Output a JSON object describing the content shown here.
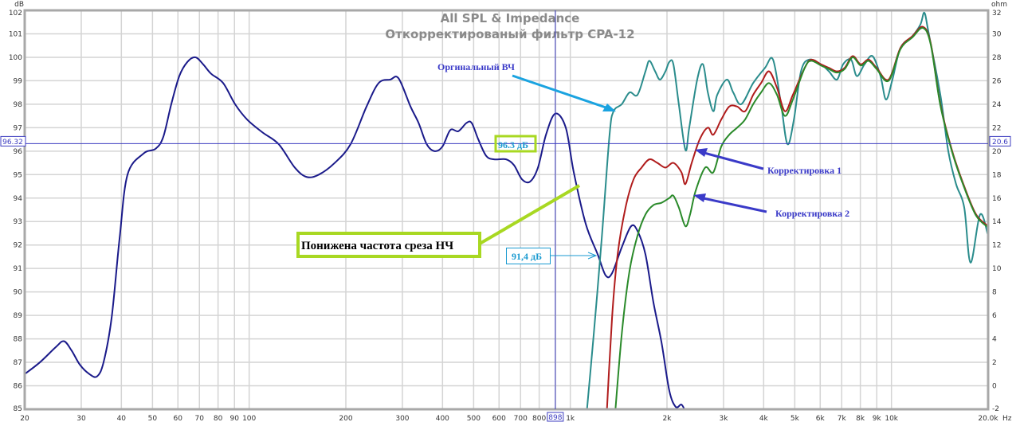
{
  "chart_data": {
    "type": "line",
    "title": "All SPL & Impedance",
    "subtitle": "Откорректированый фильтр CPA-12",
    "xlabel_unit": "Hz",
    "ylabel": "dB",
    "ylabel_right": "ohm",
    "xscale": "log",
    "xlim": [
      20,
      20000
    ],
    "ylim": [
      85,
      102
    ],
    "ylim_right": [
      -2,
      32
    ],
    "grid": true,
    "y_ticks": [
      85,
      86,
      87,
      88,
      89,
      90,
      91,
      92,
      93,
      94,
      95,
      96,
      97,
      98,
      99,
      100,
      101,
      102
    ],
    "y_right_ticks": [
      -2,
      0,
      2,
      4,
      6,
      8,
      10,
      12,
      14,
      16,
      18,
      20,
      22,
      24,
      26,
      28,
      30,
      32
    ],
    "x_ticks": [
      {
        "f": 20,
        "label": "20"
      },
      {
        "f": 30,
        "label": "30"
      },
      {
        "f": 40,
        "label": "40"
      },
      {
        "f": 50,
        "label": "50"
      },
      {
        "f": 60,
        "label": "60"
      },
      {
        "f": 70,
        "label": "70"
      },
      {
        "f": 80,
        "label": "80"
      },
      {
        "f": 90,
        "label": "90"
      },
      {
        "f": 100,
        "label": "100"
      },
      {
        "f": 200,
        "label": "200"
      },
      {
        "f": 300,
        "label": "300"
      },
      {
        "f": 400,
        "label": "400"
      },
      {
        "f": 500,
        "label": "500"
      },
      {
        "f": 600,
        "label": "600"
      },
      {
        "f": 700,
        "label": "700"
      },
      {
        "f": 800,
        "label": "800"
      },
      {
        "f": 900,
        "label": ""
      },
      {
        "f": 1000,
        "label": "1k"
      },
      {
        "f": 2000,
        "label": "2k"
      },
      {
        "f": 3000,
        "label": "3k"
      },
      {
        "f": 4000,
        "label": "4k"
      },
      {
        "f": 5000,
        "label": "5k"
      },
      {
        "f": 6000,
        "label": "6k"
      },
      {
        "f": 7000,
        "label": "7k"
      },
      {
        "f": 8000,
        "label": "8k"
      },
      {
        "f": 9000,
        "label": "9k"
      },
      {
        "f": 10000,
        "label": "10k"
      },
      {
        "f": 20000,
        "label": "20.0k"
      }
    ],
    "cursor": {
      "freq": 898,
      "freq_label": "898",
      "db_label": "96.32",
      "ohm_label": "20.6",
      "db": 96.32
    },
    "series": [
      {
        "id": "lf",
        "color": "#1a1a8a",
        "points": [
          [
            20,
            86.5
          ],
          [
            22.3,
            87.0
          ],
          [
            25,
            87.65
          ],
          [
            26.5,
            87.9
          ],
          [
            28,
            87.5
          ],
          [
            29.7,
            86.9
          ],
          [
            31.8,
            86.5
          ],
          [
            33.6,
            86.4
          ],
          [
            35.2,
            87.0
          ],
          [
            37.3,
            88.9
          ],
          [
            39.5,
            92.3
          ],
          [
            41.8,
            95.0
          ],
          [
            46.9,
            95.9
          ],
          [
            51.1,
            96.1
          ],
          [
            54,
            96.6
          ],
          [
            57.2,
            98.0
          ],
          [
            60.6,
            99.2
          ],
          [
            64.2,
            99.8
          ],
          [
            68,
            100.0
          ],
          [
            71.9,
            99.7
          ],
          [
            76.1,
            99.3
          ],
          [
            83,
            98.9
          ],
          [
            90.4,
            98.0
          ],
          [
            98.5,
            97.35
          ],
          [
            110,
            96.8
          ],
          [
            123.5,
            96.3
          ],
          [
            138.7,
            95.3
          ],
          [
            151,
            94.9
          ],
          [
            164.8,
            95.0
          ],
          [
            184.7,
            95.5
          ],
          [
            207,
            96.3
          ],
          [
            232,
            97.9
          ],
          [
            253,
            98.9
          ],
          [
            275,
            99.05
          ],
          [
            292,
            99.1
          ],
          [
            318,
            97.9
          ],
          [
            337,
            97.2
          ],
          [
            357,
            96.3
          ],
          [
            378,
            96.0
          ],
          [
            400,
            96.2
          ],
          [
            423,
            96.9
          ],
          [
            448,
            96.85
          ],
          [
            475,
            97.2
          ],
          [
            493,
            97.2
          ],
          [
            517,
            96.5
          ],
          [
            547,
            95.8
          ],
          [
            579,
            95.65
          ],
          [
            631,
            95.65
          ],
          [
            668,
            95.4
          ],
          [
            707,
            94.8
          ],
          [
            749,
            94.7
          ],
          [
            793,
            95.3
          ],
          [
            840,
            96.7
          ],
          [
            898,
            97.6
          ],
          [
            968,
            97.0
          ],
          [
            1025,
            95.1
          ],
          [
            1117,
            92.9
          ],
          [
            1217,
            91.6
          ],
          [
            1289,
            90.7
          ],
          [
            1349,
            90.8
          ],
          [
            1446,
            91.9
          ],
          [
            1546,
            92.8
          ],
          [
            1619,
            92.6
          ],
          [
            1714,
            91.6
          ],
          [
            1815,
            89.55
          ],
          [
            1923,
            87.85
          ],
          [
            2033,
            85.8
          ],
          [
            2130,
            85.1
          ],
          [
            2218,
            85.2
          ],
          [
            2283,
            84.9
          ]
        ]
      },
      {
        "id": "hf-original",
        "color": "#2a8c8c",
        "points": [
          [
            1110,
            84
          ],
          [
            1183,
            88.2
          ],
          [
            1253,
            92.3
          ],
          [
            1325,
            96.7
          ],
          [
            1364,
            97.7
          ],
          [
            1446,
            98.0
          ],
          [
            1529,
            98.5
          ],
          [
            1619,
            98.4
          ],
          [
            1714,
            99.4
          ],
          [
            1763,
            99.85
          ],
          [
            1837,
            99.4
          ],
          [
            1901,
            99.05
          ],
          [
            1978,
            99.4
          ],
          [
            2033,
            99.8
          ],
          [
            2094,
            99.7
          ],
          [
            2177,
            98.0
          ],
          [
            2283,
            96.05
          ],
          [
            2346,
            97.0
          ],
          [
            2484,
            99.05
          ],
          [
            2589,
            99.7
          ],
          [
            2681,
            98.5
          ],
          [
            2788,
            97.7
          ],
          [
            2867,
            98.4
          ],
          [
            3071,
            99.05
          ],
          [
            3216,
            98.5
          ],
          [
            3406,
            98.0
          ],
          [
            3710,
            98.9
          ],
          [
            4039,
            99.55
          ],
          [
            4278,
            99.9
          ],
          [
            4531,
            98.0
          ],
          [
            4744,
            96.3
          ],
          [
            4969,
            97.35
          ],
          [
            5228,
            99.4
          ],
          [
            5536,
            99.9
          ],
          [
            6031,
            99.7
          ],
          [
            6387,
            99.4
          ],
          [
            6763,
            99.05
          ],
          [
            7070,
            99.7
          ],
          [
            7486,
            99.9
          ],
          [
            7800,
            99.2
          ],
          [
            8245,
            99.7
          ],
          [
            8730,
            100.05
          ],
          [
            9245,
            99.2
          ],
          [
            9618,
            98.2
          ],
          [
            10070,
            99.05
          ],
          [
            10670,
            100.4
          ],
          [
            11620,
            100.9
          ],
          [
            12310,
            101.4
          ],
          [
            12660,
            101.9
          ],
          [
            13030,
            101.1
          ],
          [
            14200,
            98.4
          ],
          [
            15030,
            96.0
          ],
          [
            15890,
            94.6
          ],
          [
            16850,
            93.6
          ],
          [
            17630,
            91.25
          ],
          [
            18880,
            93.3
          ],
          [
            20000,
            92.4
          ]
        ]
      },
      {
        "id": "correction-1",
        "color": "#b01c1c",
        "points": [
          [
            1289,
            84
          ],
          [
            1349,
            88.9
          ],
          [
            1404,
            91.6
          ],
          [
            1486,
            93.6
          ],
          [
            1574,
            94.8
          ],
          [
            1667,
            95.3
          ],
          [
            1763,
            95.65
          ],
          [
            1866,
            95.5
          ],
          [
            1978,
            95.3
          ],
          [
            2094,
            95.5
          ],
          [
            2218,
            95.1
          ],
          [
            2283,
            94.6
          ],
          [
            2388,
            95.5
          ],
          [
            2529,
            96.5
          ],
          [
            2681,
            97.0
          ],
          [
            2788,
            96.7
          ],
          [
            2952,
            97.35
          ],
          [
            3126,
            97.9
          ],
          [
            3307,
            97.9
          ],
          [
            3502,
            97.7
          ],
          [
            3710,
            98.4
          ],
          [
            3926,
            98.9
          ],
          [
            4158,
            99.4
          ],
          [
            4401,
            98.7
          ],
          [
            4659,
            97.7
          ],
          [
            4933,
            98.4
          ],
          [
            5370,
            99.55
          ],
          [
            5623,
            99.9
          ],
          [
            6031,
            99.7
          ],
          [
            6387,
            99.55
          ],
          [
            6763,
            99.4
          ],
          [
            7150,
            99.55
          ],
          [
            7570,
            100.05
          ],
          [
            8020,
            99.7
          ],
          [
            8490,
            99.9
          ],
          [
            8990,
            99.55
          ],
          [
            9800,
            99.05
          ],
          [
            10670,
            100.4
          ],
          [
            11620,
            100.9
          ],
          [
            12530,
            101.3
          ],
          [
            13250,
            100.6
          ],
          [
            14200,
            98.0
          ],
          [
            15460,
            96.0
          ],
          [
            16850,
            94.5
          ],
          [
            18350,
            93.3
          ],
          [
            20000,
            92.8
          ]
        ]
      },
      {
        "id": "correction-2",
        "color": "#2a8a2a",
        "points": [
          [
            1364,
            84
          ],
          [
            1446,
            88.2
          ],
          [
            1529,
            90.9
          ],
          [
            1619,
            92.4
          ],
          [
            1714,
            93.3
          ],
          [
            1815,
            93.7
          ],
          [
            1923,
            93.8
          ],
          [
            2033,
            94.0
          ],
          [
            2094,
            94.1
          ],
          [
            2177,
            93.6
          ],
          [
            2283,
            92.8
          ],
          [
            2360,
            93.3
          ],
          [
            2455,
            94.3
          ],
          [
            2630,
            95.3
          ],
          [
            2788,
            95.1
          ],
          [
            2952,
            96.2
          ],
          [
            3126,
            96.7
          ],
          [
            3307,
            97.0
          ],
          [
            3502,
            97.35
          ],
          [
            3710,
            98.0
          ],
          [
            3926,
            98.5
          ],
          [
            4158,
            98.9
          ],
          [
            4401,
            98.4
          ],
          [
            4659,
            97.5
          ],
          [
            4933,
            98.2
          ],
          [
            5370,
            99.55
          ],
          [
            5623,
            99.85
          ],
          [
            6031,
            99.65
          ],
          [
            6387,
            99.5
          ],
          [
            6763,
            99.35
          ],
          [
            7150,
            99.5
          ],
          [
            7570,
            100.0
          ],
          [
            8020,
            99.65
          ],
          [
            8490,
            99.85
          ],
          [
            8990,
            99.5
          ],
          [
            9800,
            99.0
          ],
          [
            10670,
            100.35
          ],
          [
            11620,
            100.85
          ],
          [
            12530,
            101.25
          ],
          [
            13250,
            100.55
          ],
          [
            14200,
            97.95
          ],
          [
            15460,
            95.95
          ],
          [
            16850,
            94.45
          ],
          [
            18350,
            93.25
          ],
          [
            20000,
            92.75
          ]
        ]
      }
    ],
    "annotations": {
      "hf_original": "Оргинальный ВЧ",
      "level_1": "96.3 дБ",
      "lf_note": "Понижена частота среза НЧ",
      "level_2": "91,4 дБ",
      "correction_1": "Корректировка 1",
      "correction_2": "Корректировка 2"
    },
    "colors": {
      "grid": "#d4d4d4",
      "frame": "#a8a8a8",
      "cursor": "#3c3cc0",
      "arrow_cyan": "#1aa3e0",
      "arrow_blue": "#3a3ac8",
      "lime": "#a8d822",
      "note_cyan": "#1a9ad0"
    }
  }
}
